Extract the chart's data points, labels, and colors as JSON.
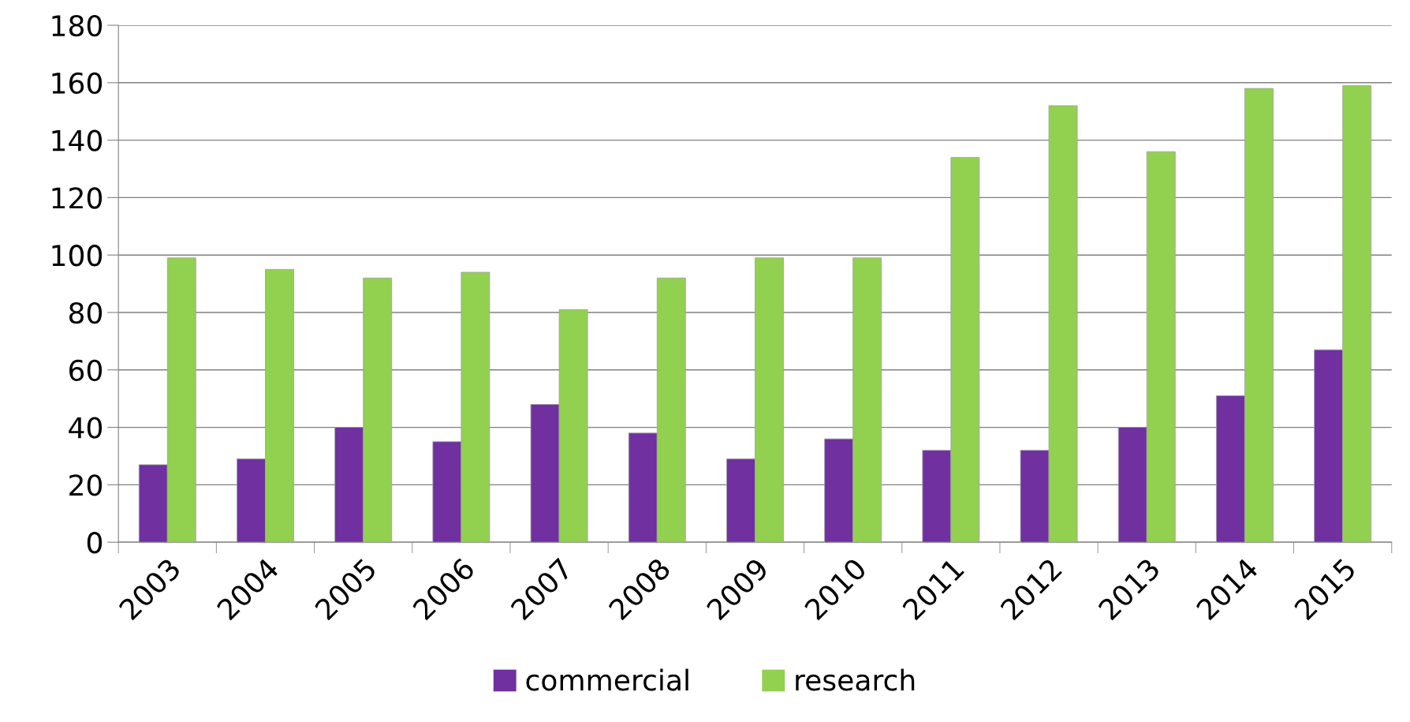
{
  "chart_data": {
    "type": "bar",
    "categories": [
      "2003",
      "2004",
      "2005",
      "2006",
      "2007",
      "2008",
      "2009",
      "2010",
      "2011",
      "2012",
      "2013",
      "2014",
      "2015"
    ],
    "series": [
      {
        "name": "commercial",
        "color": "#7030a0",
        "values": [
          27,
          29,
          40,
          35,
          48,
          38,
          29,
          36,
          32,
          32,
          40,
          51,
          67
        ]
      },
      {
        "name": "research",
        "color": "#92d050",
        "values": [
          99,
          95,
          92,
          94,
          81,
          92,
          99,
          99,
          134,
          152,
          136,
          158,
          159
        ]
      }
    ],
    "ylim": [
      0,
      180
    ],
    "yticks": [
      0,
      20,
      40,
      60,
      80,
      100,
      120,
      140,
      160,
      180
    ],
    "grid": "y",
    "legend": "bottom"
  }
}
